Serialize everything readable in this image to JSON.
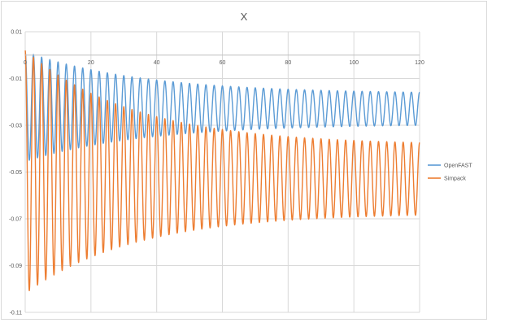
{
  "chart_data": {
    "type": "line",
    "title": "X",
    "xlabel": "",
    "ylabel": "",
    "xlim": [
      0,
      120
    ],
    "ylim": [
      -0.11,
      0.01
    ],
    "x_ticks": [
      "0",
      "20",
      "40",
      "60",
      "80",
      "100",
      "120"
    ],
    "y_ticks": [
      "0.01",
      "-0.01",
      "-0.03",
      "-0.05",
      "-0.07",
      "-0.09",
      "-0.11"
    ],
    "grid": true,
    "legend_position": "right",
    "series": [
      {
        "name": "OpenFAST",
        "color": "#5b9bd5",
        "model": {
          "x_start": 0,
          "x_end": 120,
          "period": 2.5,
          "mean_start": -0.022,
          "mean_end": -0.023,
          "amp_start": 0.0235,
          "amp_end": 0.0065,
          "decay": 0.028
        },
        "x": [
          0,
          1.25,
          2.5,
          3.75,
          5,
          7.5,
          10,
          20,
          40,
          60,
          80,
          100,
          120
        ],
        "max": [
          0.002,
          0.001,
          0.001,
          0.001,
          0.0,
          -0.001,
          -0.001,
          -0.002,
          -0.006,
          -0.009,
          -0.012,
          -0.015,
          -0.016
        ],
        "min": [
          -0.045,
          -0.045,
          -0.045,
          -0.045,
          -0.045,
          -0.044,
          -0.044,
          -0.042,
          -0.037,
          -0.034,
          -0.032,
          -0.03,
          -0.029
        ]
      },
      {
        "name": "Simpack",
        "color": "#ed7d31",
        "model": {
          "x_start": 0,
          "x_end": 120,
          "period": 2.5,
          "mean_start": -0.05,
          "mean_end": -0.053,
          "amp_start": 0.052,
          "amp_end": 0.0145,
          "decay": 0.03
        },
        "x": [
          0,
          1.25,
          2.5,
          3.75,
          5,
          7.5,
          10,
          20,
          40,
          60,
          80,
          100,
          120
        ],
        "max": [
          0.0,
          0.0,
          0.001,
          0.0,
          -0.001,
          -0.002,
          -0.003,
          -0.006,
          -0.016,
          -0.025,
          -0.034,
          -0.038,
          -0.038
        ],
        "min": [
          -0.102,
          -0.102,
          -0.101,
          -0.101,
          -0.101,
          -0.1,
          -0.099,
          -0.097,
          -0.088,
          -0.079,
          -0.071,
          -0.068,
          -0.067
        ]
      }
    ]
  }
}
